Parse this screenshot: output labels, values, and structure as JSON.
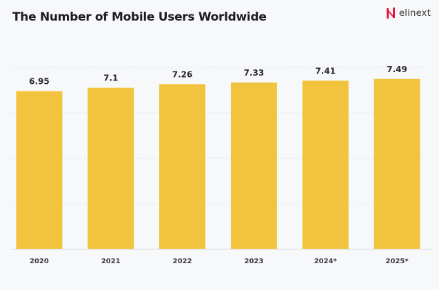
{
  "brand": {
    "logo_text": "elinext",
    "logo_color": "#e8163c"
  },
  "chart_data": {
    "type": "bar",
    "title": "The Number of Mobile Users Worldwide",
    "xlabel": "",
    "ylabel": "",
    "categories": [
      "2020",
      "2021",
      "2022",
      "2023",
      "2024*",
      "2025*"
    ],
    "values": [
      6.95,
      7.1,
      7.26,
      7.33,
      7.41,
      7.49
    ],
    "data_labels": [
      "6.95",
      "7.1",
      "7.26",
      "7.33",
      "7.41",
      "7.49"
    ],
    "ylim": [
      0,
      8
    ],
    "y_gridlines": [
      2,
      4,
      6,
      8
    ],
    "y_tick_labels_shown": false,
    "grid": true,
    "bar_color": "#f2c43d",
    "background": "#f7f8fa"
  }
}
